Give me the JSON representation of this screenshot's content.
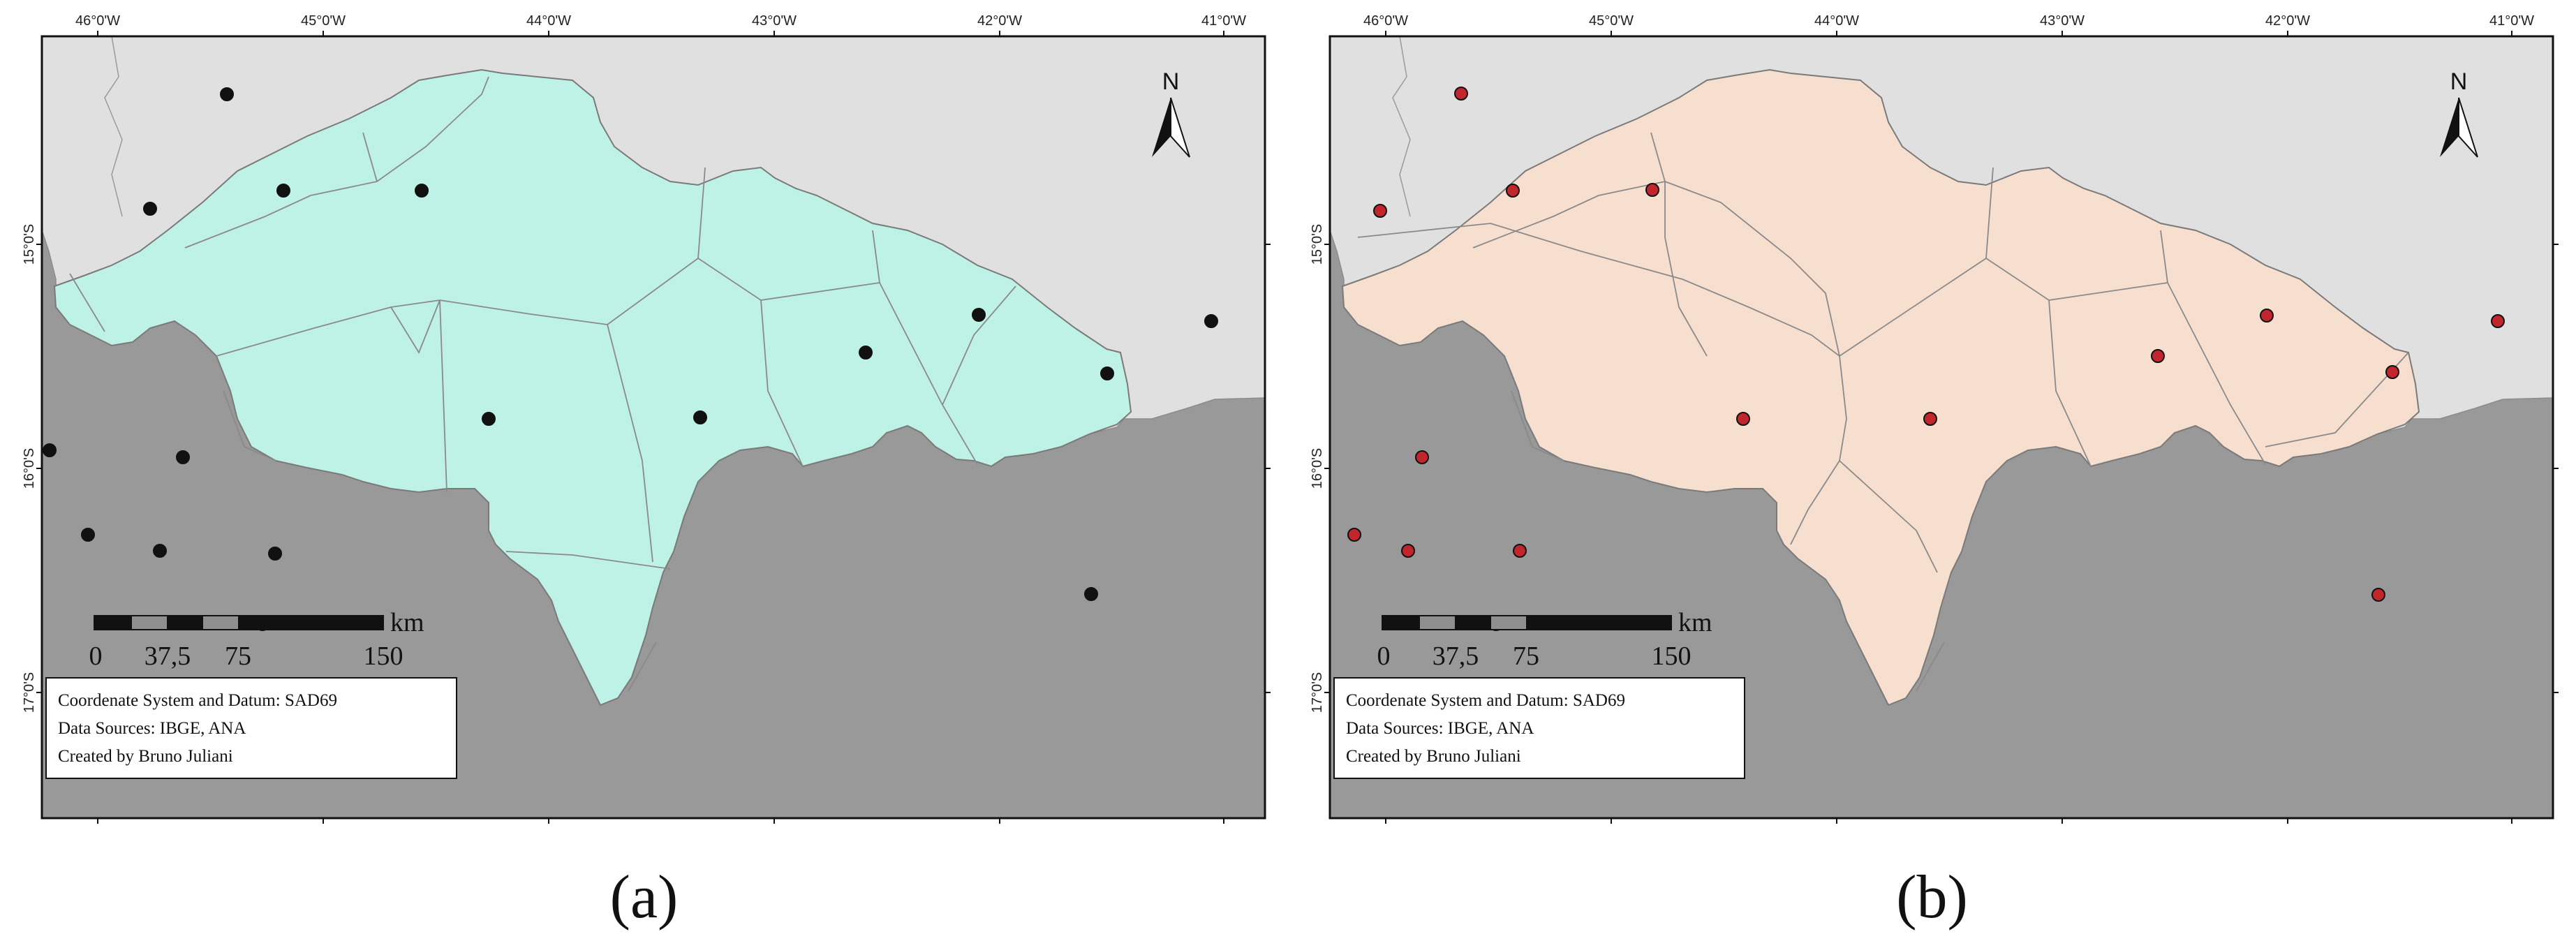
{
  "figure": {
    "panels": [
      {
        "caption": "(a)",
        "region_fill": "#bff2e6",
        "station_fill": "#111111"
      },
      {
        "caption": "(b)",
        "region_fill": "#f7dfd0",
        "station_fill": "#c0262c"
      }
    ],
    "colors": {
      "outside_light": "#e0e0e0",
      "outside_dark": "#999999",
      "boundary_line": "#8c8c8c",
      "frame": "#111111"
    },
    "grid": {
      "longitude_ticks": [
        "46°0'W",
        "45°0'W",
        "44°0'W",
        "43°0'W",
        "42°0'W",
        "41°0'W"
      ],
      "latitude_ticks": [
        "15°0'S",
        "16°0'S",
        "17°0'S"
      ]
    },
    "north_arrow": {
      "label": "N",
      "icon": "north-arrow-icon"
    },
    "scale_bar": {
      "unit": "km",
      "labels": [
        "0",
        "37,5",
        "75",
        "150"
      ]
    },
    "credits": {
      "line1": "Coordenate System and Datum: SAD69",
      "line2": "Data Sources: IBGE, ANA",
      "line3": "Created by Bruno Juliani"
    }
  }
}
